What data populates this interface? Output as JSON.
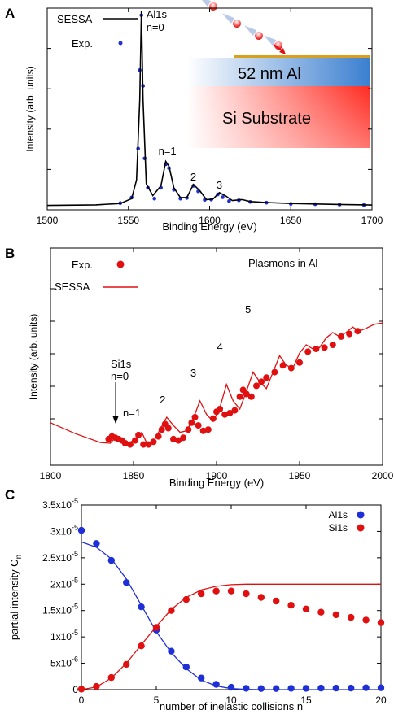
{
  "panels": {
    "A": "A",
    "B": "B",
    "C": "C"
  },
  "colors": {
    "blue": "#1f2fd6",
    "red": "#e01010",
    "black": "#000000",
    "film_blue": "#3b7fd0",
    "substrate_red": "#ff2a20",
    "gold": "#d9a020"
  },
  "chart_data": [
    {
      "type": "line",
      "panel": "A",
      "xlabel": "Binding Energy (eV)",
      "ylabel": "Intensity (arb. units)",
      "xlim": [
        1500,
        1700
      ],
      "xticks": [
        "1500",
        "1550",
        "1600",
        "1650",
        "1700"
      ],
      "xtick_values": [
        1500,
        1550,
        1600,
        1650,
        1700
      ],
      "legend": {
        "placement": "top-left",
        "items": [
          "SESSA",
          "Exp."
        ]
      },
      "series": [
        {
          "name": "SESSA",
          "style": "line",
          "color": "#000000",
          "x": [
            1500,
            1530,
            1545,
            1552,
            1555,
            1557,
            1558,
            1559,
            1561,
            1565,
            1570,
            1573,
            1575,
            1578,
            1582,
            1586,
            1590,
            1594,
            1598,
            1602,
            1606,
            1610,
            1614,
            1620,
            1625,
            1635,
            1650,
            1680,
            1700
          ],
          "y": [
            0.01,
            0.013,
            0.02,
            0.045,
            0.14,
            0.55,
            1.0,
            0.55,
            0.12,
            0.06,
            0.11,
            0.235,
            0.21,
            0.1,
            0.05,
            0.05,
            0.117,
            0.085,
            0.04,
            0.042,
            0.075,
            0.058,
            0.035,
            0.04,
            0.03,
            0.025,
            0.02,
            0.015,
            0.012
          ]
        },
        {
          "name": "Exp.",
          "style": "markers",
          "color": "#1f2fd6",
          "x": [
            1545,
            1552,
            1556,
            1557,
            1558,
            1559,
            1560,
            1562,
            1566,
            1570,
            1573,
            1575,
            1578,
            1582,
            1586,
            1590,
            1593,
            1597,
            1601,
            1605,
            1608,
            1612,
            1618,
            1625,
            1635,
            1650,
            1665,
            1680,
            1695
          ],
          "y": [
            0.022,
            0.05,
            0.3,
            0.7,
            0.98,
            0.62,
            0.25,
            0.1,
            0.045,
            0.1,
            0.22,
            0.2,
            0.09,
            0.045,
            0.048,
            0.11,
            0.082,
            0.038,
            0.04,
            0.066,
            0.052,
            0.032,
            0.036,
            0.028,
            0.024,
            0.018,
            0.016,
            0.014,
            0.012
          ]
        }
      ],
      "annotations": [
        {
          "text": "Al1s",
          "x": 1560
        },
        {
          "text": "n=0",
          "x": 1560
        },
        {
          "text": "n=1",
          "x": 1574
        },
        {
          "text": "2",
          "x": 1590
        },
        {
          "text": "3",
          "x": 1606
        }
      ],
      "inset": {
        "film_label": "52 nm Al",
        "substrate_label": "Si Substrate"
      }
    },
    {
      "type": "line",
      "panel": "B",
      "title": "Plasmons in Al",
      "xlabel": "Binding Energy (eV)",
      "ylabel": "Intensity (arb. units)",
      "xlim": [
        1800,
        2000
      ],
      "xticks": [
        "1800",
        "1850",
        "1900",
        "1950",
        "2000"
      ],
      "xtick_values": [
        1800,
        1850,
        1900,
        1950,
        2000
      ],
      "legend": {
        "placement": "top-left",
        "items": [
          "Exp.",
          "SESSA"
        ]
      },
      "series": [
        {
          "name": "SESSA",
          "style": "line",
          "color": "#e01010",
          "x": [
            1800,
            1815,
            1830,
            1836,
            1839,
            1843,
            1848,
            1852,
            1855,
            1858,
            1862,
            1866,
            1870,
            1874,
            1878,
            1882,
            1886,
            1890,
            1894,
            1898,
            1902,
            1906,
            1910,
            1914,
            1918,
            1922,
            1926,
            1930,
            1934,
            1938,
            1942,
            1946,
            1950,
            1954,
            1958,
            1962,
            1966,
            1970,
            1974,
            1978,
            1982,
            1986,
            1990,
            1995,
            2000
          ],
          "y": [
            0.18,
            0.1,
            0.035,
            0.03,
            0.07,
            0.04,
            0.035,
            0.07,
            0.11,
            0.03,
            0.04,
            0.13,
            0.22,
            0.16,
            0.11,
            0.12,
            0.21,
            0.34,
            0.24,
            0.19,
            0.29,
            0.46,
            0.34,
            0.28,
            0.41,
            0.55,
            0.48,
            0.43,
            0.55,
            0.67,
            0.6,
            0.58,
            0.69,
            0.75,
            0.72,
            0.73,
            0.8,
            0.84,
            0.81,
            0.84,
            0.88,
            0.85,
            0.87,
            0.9,
            0.91
          ]
        },
        {
          "name": "Exp.",
          "style": "markers",
          "color": "#e01010",
          "x": [
            1835,
            1837,
            1839,
            1841,
            1843,
            1845,
            1848,
            1851,
            1853,
            1856,
            1859,
            1862,
            1865,
            1867,
            1869,
            1871,
            1874,
            1877,
            1880,
            1883,
            1885,
            1887,
            1889,
            1892,
            1895,
            1898,
            1900,
            1902,
            1905,
            1908,
            1911,
            1914,
            1916,
            1918,
            1921,
            1924,
            1927,
            1930,
            1935,
            1940,
            1945,
            1950,
            1955,
            1960,
            1965,
            1970,
            1975,
            1980,
            1985
          ],
          "y": [
            0.06,
            0.08,
            0.07,
            0.06,
            0.05,
            0.03,
            0.02,
            0.05,
            0.09,
            0.02,
            0.02,
            0.04,
            0.08,
            0.13,
            0.17,
            0.14,
            0.06,
            0.05,
            0.07,
            0.13,
            0.18,
            0.22,
            0.16,
            0.12,
            0.13,
            0.21,
            0.26,
            0.28,
            0.24,
            0.25,
            0.27,
            0.37,
            0.42,
            0.39,
            0.37,
            0.45,
            0.48,
            0.51,
            0.55,
            0.6,
            0.58,
            0.62,
            0.7,
            0.72,
            0.73,
            0.75,
            0.81,
            0.83,
            0.85
          ]
        }
      ],
      "annotations": [
        {
          "text": "Si1s",
          "x": 1839
        },
        {
          "text": "n=0",
          "x": 1839
        },
        {
          "text": "n=1",
          "x": 1852
        },
        {
          "text": "2",
          "x": 1870
        },
        {
          "text": "3",
          "x": 1886
        },
        {
          "text": "4",
          "x": 1902
        },
        {
          "text": "5",
          "x": 1919
        }
      ]
    },
    {
      "type": "scatter",
      "panel": "C",
      "xlabel": "number of inelastic collisions n",
      "ylabel_main": "partial intensity C",
      "ylabel_sub": "n",
      "xlim": [
        0,
        20
      ],
      "ylim": [
        0,
        3.5e-05
      ],
      "xticks": [
        "0",
        "5",
        "10",
        "15",
        "20"
      ],
      "xtick_values": [
        0,
        5,
        10,
        15,
        20
      ],
      "yticks": [
        {
          "value": 0,
          "mant": "0",
          "exp": ""
        },
        {
          "value": 5e-06,
          "mant": "5x10",
          "exp": "-6"
        },
        {
          "value": 1e-05,
          "mant": "1x10",
          "exp": "-5"
        },
        {
          "value": 1.5e-05,
          "mant": "1.5x10",
          "exp": "-5"
        },
        {
          "value": 2e-05,
          "mant": "2x10",
          "exp": "-5"
        },
        {
          "value": 2.5e-05,
          "mant": "2.5x10",
          "exp": "-5"
        },
        {
          "value": 3e-05,
          "mant": "3x10",
          "exp": "-5"
        },
        {
          "value": 3.5e-05,
          "mant": "3.5x10",
          "exp": "-5"
        }
      ],
      "legend": {
        "placement": "top-right",
        "items": [
          "Al1s",
          "Si1s"
        ]
      },
      "series": [
        {
          "name": "Al1s",
          "color": "#1f2fd6",
          "x": [
            0,
            1,
            2,
            3,
            4,
            5,
            6,
            7,
            8,
            9,
            10,
            11,
            12,
            13,
            14,
            15,
            16,
            17,
            18,
            19,
            20
          ],
          "y": [
            3.02e-05,
            2.77e-05,
            2.45e-05,
            2.03e-05,
            1.57e-05,
            1.13e-05,
            7.3e-06,
            4.3e-06,
            2.2e-06,
            1e-06,
            4.5e-07,
            2.5e-07,
            2e-07,
            2e-07,
            2.5e-07,
            2.5e-07,
            3e-07,
            3e-07,
            3e-07,
            3.5e-07,
            3.5e-07
          ],
          "fit_x": [
            0,
            1,
            2,
            3,
            4,
            5,
            6,
            7,
            8,
            9,
            10,
            11,
            12,
            13,
            14,
            15,
            16,
            17,
            18,
            19,
            20
          ],
          "fit_y": [
            2.8e-05,
            2.7e-05,
            2.48e-05,
            2.1e-05,
            1.6e-05,
            1.1e-05,
            7e-06,
            4e-06,
            1.8e-06,
            7e-07,
            2e-07,
            5e-08,
            0,
            0,
            0,
            0,
            0,
            0,
            0,
            0,
            0
          ]
        },
        {
          "name": "Si1s",
          "color": "#e01010",
          "x": [
            0,
            1,
            2,
            3,
            4,
            5,
            6,
            7,
            8,
            9,
            10,
            11,
            12,
            13,
            14,
            15,
            16,
            17,
            18,
            19,
            20
          ],
          "y": [
            1e-07,
            6e-07,
            2.3e-06,
            4.8e-06,
            8.3e-06,
            1.18e-05,
            1.5e-05,
            1.71e-05,
            1.82e-05,
            1.87e-05,
            1.87e-05,
            1.82e-05,
            1.75e-05,
            1.68e-05,
            1.6e-05,
            1.53e-05,
            1.47e-05,
            1.42e-05,
            1.37e-05,
            1.32e-05,
            1.27e-05
          ],
          "fit_x": [
            0,
            1,
            2,
            3,
            4,
            5,
            6,
            7,
            8,
            9,
            10,
            11,
            12,
            13,
            14,
            15,
            16,
            17,
            18,
            19,
            20
          ],
          "fit_y": [
            0,
            5e-07,
            2.2e-06,
            5e-06,
            8.5e-06,
            1.2e-05,
            1.52e-05,
            1.75e-05,
            1.89e-05,
            1.96e-05,
            1.99e-05,
            2e-05,
            2e-05,
            2e-05,
            2e-05,
            2e-05,
            2e-05,
            2e-05,
            2e-05,
            2e-05,
            2e-05
          ]
        }
      ]
    }
  ]
}
